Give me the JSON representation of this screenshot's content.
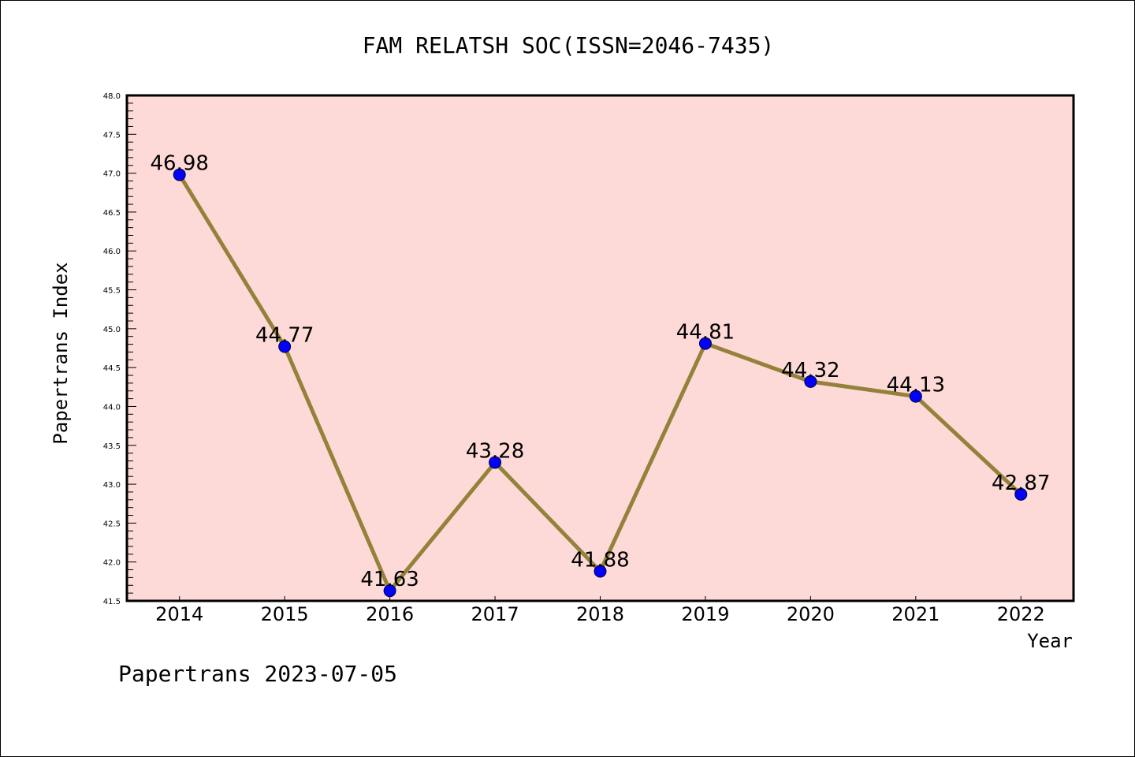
{
  "chart_data": {
    "type": "line",
    "title": "FAM RELATSH SOC(ISSN=2046-7435)",
    "xlabel": "Year",
    "ylabel": "Papertrans Index",
    "footer": "Papertrans 2023-07-05",
    "x": [
      2014,
      2015,
      2016,
      2017,
      2018,
      2019,
      2020,
      2021,
      2022
    ],
    "x_tick_labels": [
      "2014",
      "2015",
      "2016",
      "2017",
      "2018",
      "2019",
      "2020",
      "2021",
      "2022"
    ],
    "values": [
      46.98,
      44.77,
      41.63,
      43.28,
      41.88,
      44.81,
      44.32,
      44.13,
      42.87
    ],
    "data_labels": [
      "46.98",
      "44.77",
      "41.63",
      "43.28",
      "41.88",
      "44.81",
      "44.32",
      "44.13",
      "42.87"
    ],
    "xlim": [
      2013.5,
      2022.5
    ],
    "ylim": [
      41.5,
      48.0
    ],
    "y_tick_labels": [
      "41.5",
      "42.0",
      "42.5",
      "43.0",
      "43.5",
      "44.0",
      "44.5",
      "45.0",
      "45.5",
      "46.0",
      "46.5",
      "47.0",
      "47.5",
      "48.0"
    ],
    "grid": false,
    "colors": {
      "background": "#fddad7",
      "line": "#94813a",
      "marker": "#0000ff"
    }
  }
}
